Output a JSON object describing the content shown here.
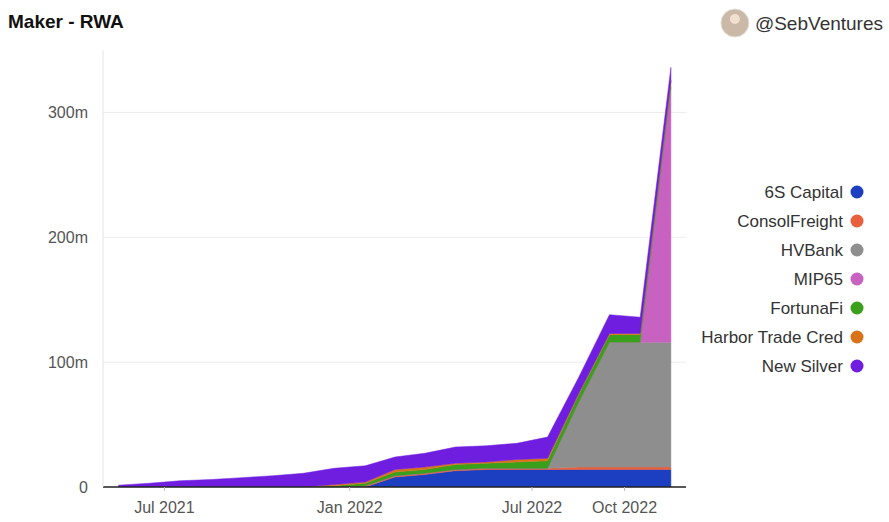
{
  "chart_data": {
    "type": "area",
    "title": "Maker - RWA",
    "subtitle": "@SebVentures",
    "stacked": true,
    "grid": true,
    "legend": "right",
    "x": [
      "2021-05",
      "2021-06",
      "2021-07",
      "2021-08",
      "2021-09",
      "2021-10",
      "2021-11",
      "2021-12",
      "2022-01",
      "2022-02",
      "2022-03",
      "2022-04",
      "2022-05",
      "2022-06",
      "2022-07",
      "2022-08",
      "2022-09",
      "2022-10",
      "2022-11"
    ],
    "xlim": [
      "2021-05",
      "2022-12"
    ],
    "xticks": [
      {
        "value": "2021-07",
        "label": "Jul 2021"
      },
      {
        "value": "2022-01",
        "label": "Jan 2022"
      },
      {
        "value": "2022-07",
        "label": "Jul 2022"
      },
      {
        "value": "2022-10",
        "label": "Oct 2022"
      }
    ],
    "ylim": [
      0,
      350
    ],
    "yticks": [
      0,
      {
        "value": 100,
        "label": "100m"
      },
      {
        "value": 200,
        "label": "200m"
      },
      {
        "value": 300,
        "label": "300m"
      }
    ],
    "series": [
      {
        "name": "6S Capital",
        "color": "#1c3fc2",
        "values": [
          0,
          0,
          0,
          0,
          0,
          0,
          0,
          0,
          0,
          8,
          10,
          13,
          14,
          14,
          14,
          14,
          14,
          14,
          14
        ]
      },
      {
        "name": "ConsolFreight",
        "color": "#e8603c",
        "values": [
          0,
          0,
          0,
          0,
          0,
          0,
          0,
          0,
          1,
          1,
          1,
          1,
          1,
          1,
          1,
          2,
          2,
          2,
          2
        ]
      },
      {
        "name": "HVBank",
        "color": "#8e8e8e",
        "values": [
          0,
          0,
          0,
          0,
          0,
          0,
          0,
          0,
          0,
          0,
          0,
          0,
          0,
          0,
          0,
          52,
          100,
          100,
          100
        ]
      },
      {
        "name": "MIP65",
        "color": "#c862c0",
        "values": [
          0,
          0,
          0,
          0,
          0,
          0,
          0,
          0,
          0,
          0,
          0,
          0,
          0,
          0,
          0,
          0,
          0,
          0,
          204
        ]
      },
      {
        "name": "FortunaFi",
        "color": "#3aa01c",
        "values": [
          0,
          0,
          0,
          0,
          0,
          0,
          0,
          1,
          2,
          3,
          3,
          4,
          4,
          5,
          6,
          6,
          6,
          6,
          5
        ]
      },
      {
        "name": "Harbor Trade Cred",
        "color": "#d9731a",
        "values": [
          0,
          0,
          0,
          0,
          0,
          0,
          0,
          1,
          1,
          2,
          2,
          1,
          1,
          2,
          2,
          1,
          1,
          1,
          1
        ]
      },
      {
        "name": "New Silver",
        "color": "#6f1ee0",
        "values": [
          1.5,
          3,
          5,
          6,
          7.5,
          9,
          11,
          13,
          13,
          10,
          11,
          13,
          13,
          13,
          17,
          13,
          15,
          13,
          10
        ]
      }
    ]
  }
}
